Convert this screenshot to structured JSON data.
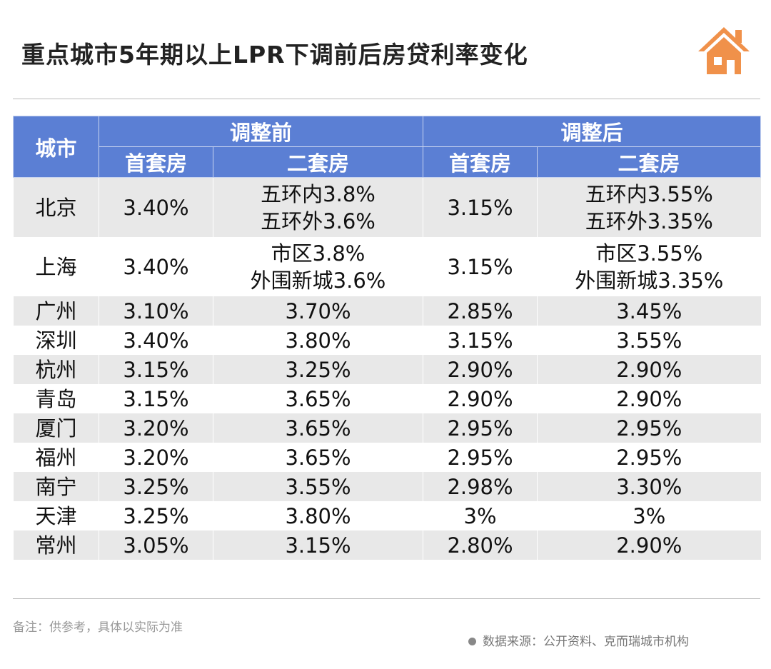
{
  "title": "重点城市5年期以上LPR下调前后房贷利率变化",
  "icon": "house-icon",
  "colors": {
    "header": "#5b7fd4",
    "icon": "#f0914a",
    "stripe": "#e8e8e8"
  },
  "chart_data": {
    "type": "table",
    "headers": {
      "city": "城市",
      "before": "调整前",
      "after": "调整后",
      "first": "首套房",
      "second": "二套房"
    },
    "rows": [
      [
        "北京",
        "3.40%",
        "五环内3.8%\n五环外3.6%",
        "3.15%",
        "五环内3.55%\n五环外3.35%"
      ],
      [
        "上海",
        "3.40%",
        "市区3.8%\n外围新城3.6%",
        "3.15%",
        "市区3.55%\n外围新城3.35%"
      ],
      [
        "广州",
        "3.10%",
        "3.70%",
        "2.85%",
        "3.45%"
      ],
      [
        "深圳",
        "3.40%",
        "3.80%",
        "3.15%",
        "3.55%"
      ],
      [
        "杭州",
        "3.15%",
        "3.25%",
        "2.90%",
        "2.90%"
      ],
      [
        "青岛",
        "3.15%",
        "3.65%",
        "2.90%",
        "2.90%"
      ],
      [
        "厦门",
        "3.20%",
        "3.65%",
        "2.95%",
        "2.95%"
      ],
      [
        "福州",
        "3.20%",
        "3.65%",
        "2.95%",
        "2.95%"
      ],
      [
        "南宁",
        "3.25%",
        "3.55%",
        "2.98%",
        "3.30%"
      ],
      [
        "天津",
        "3.25%",
        "3.80%",
        "3%",
        "3%"
      ],
      [
        "常州",
        "3.05%",
        "3.15%",
        "2.80%",
        "2.90%"
      ]
    ]
  },
  "note": "备注：供参考，具体以实际为准",
  "source": "数据来源：公开资料、克而瑞城市机构"
}
